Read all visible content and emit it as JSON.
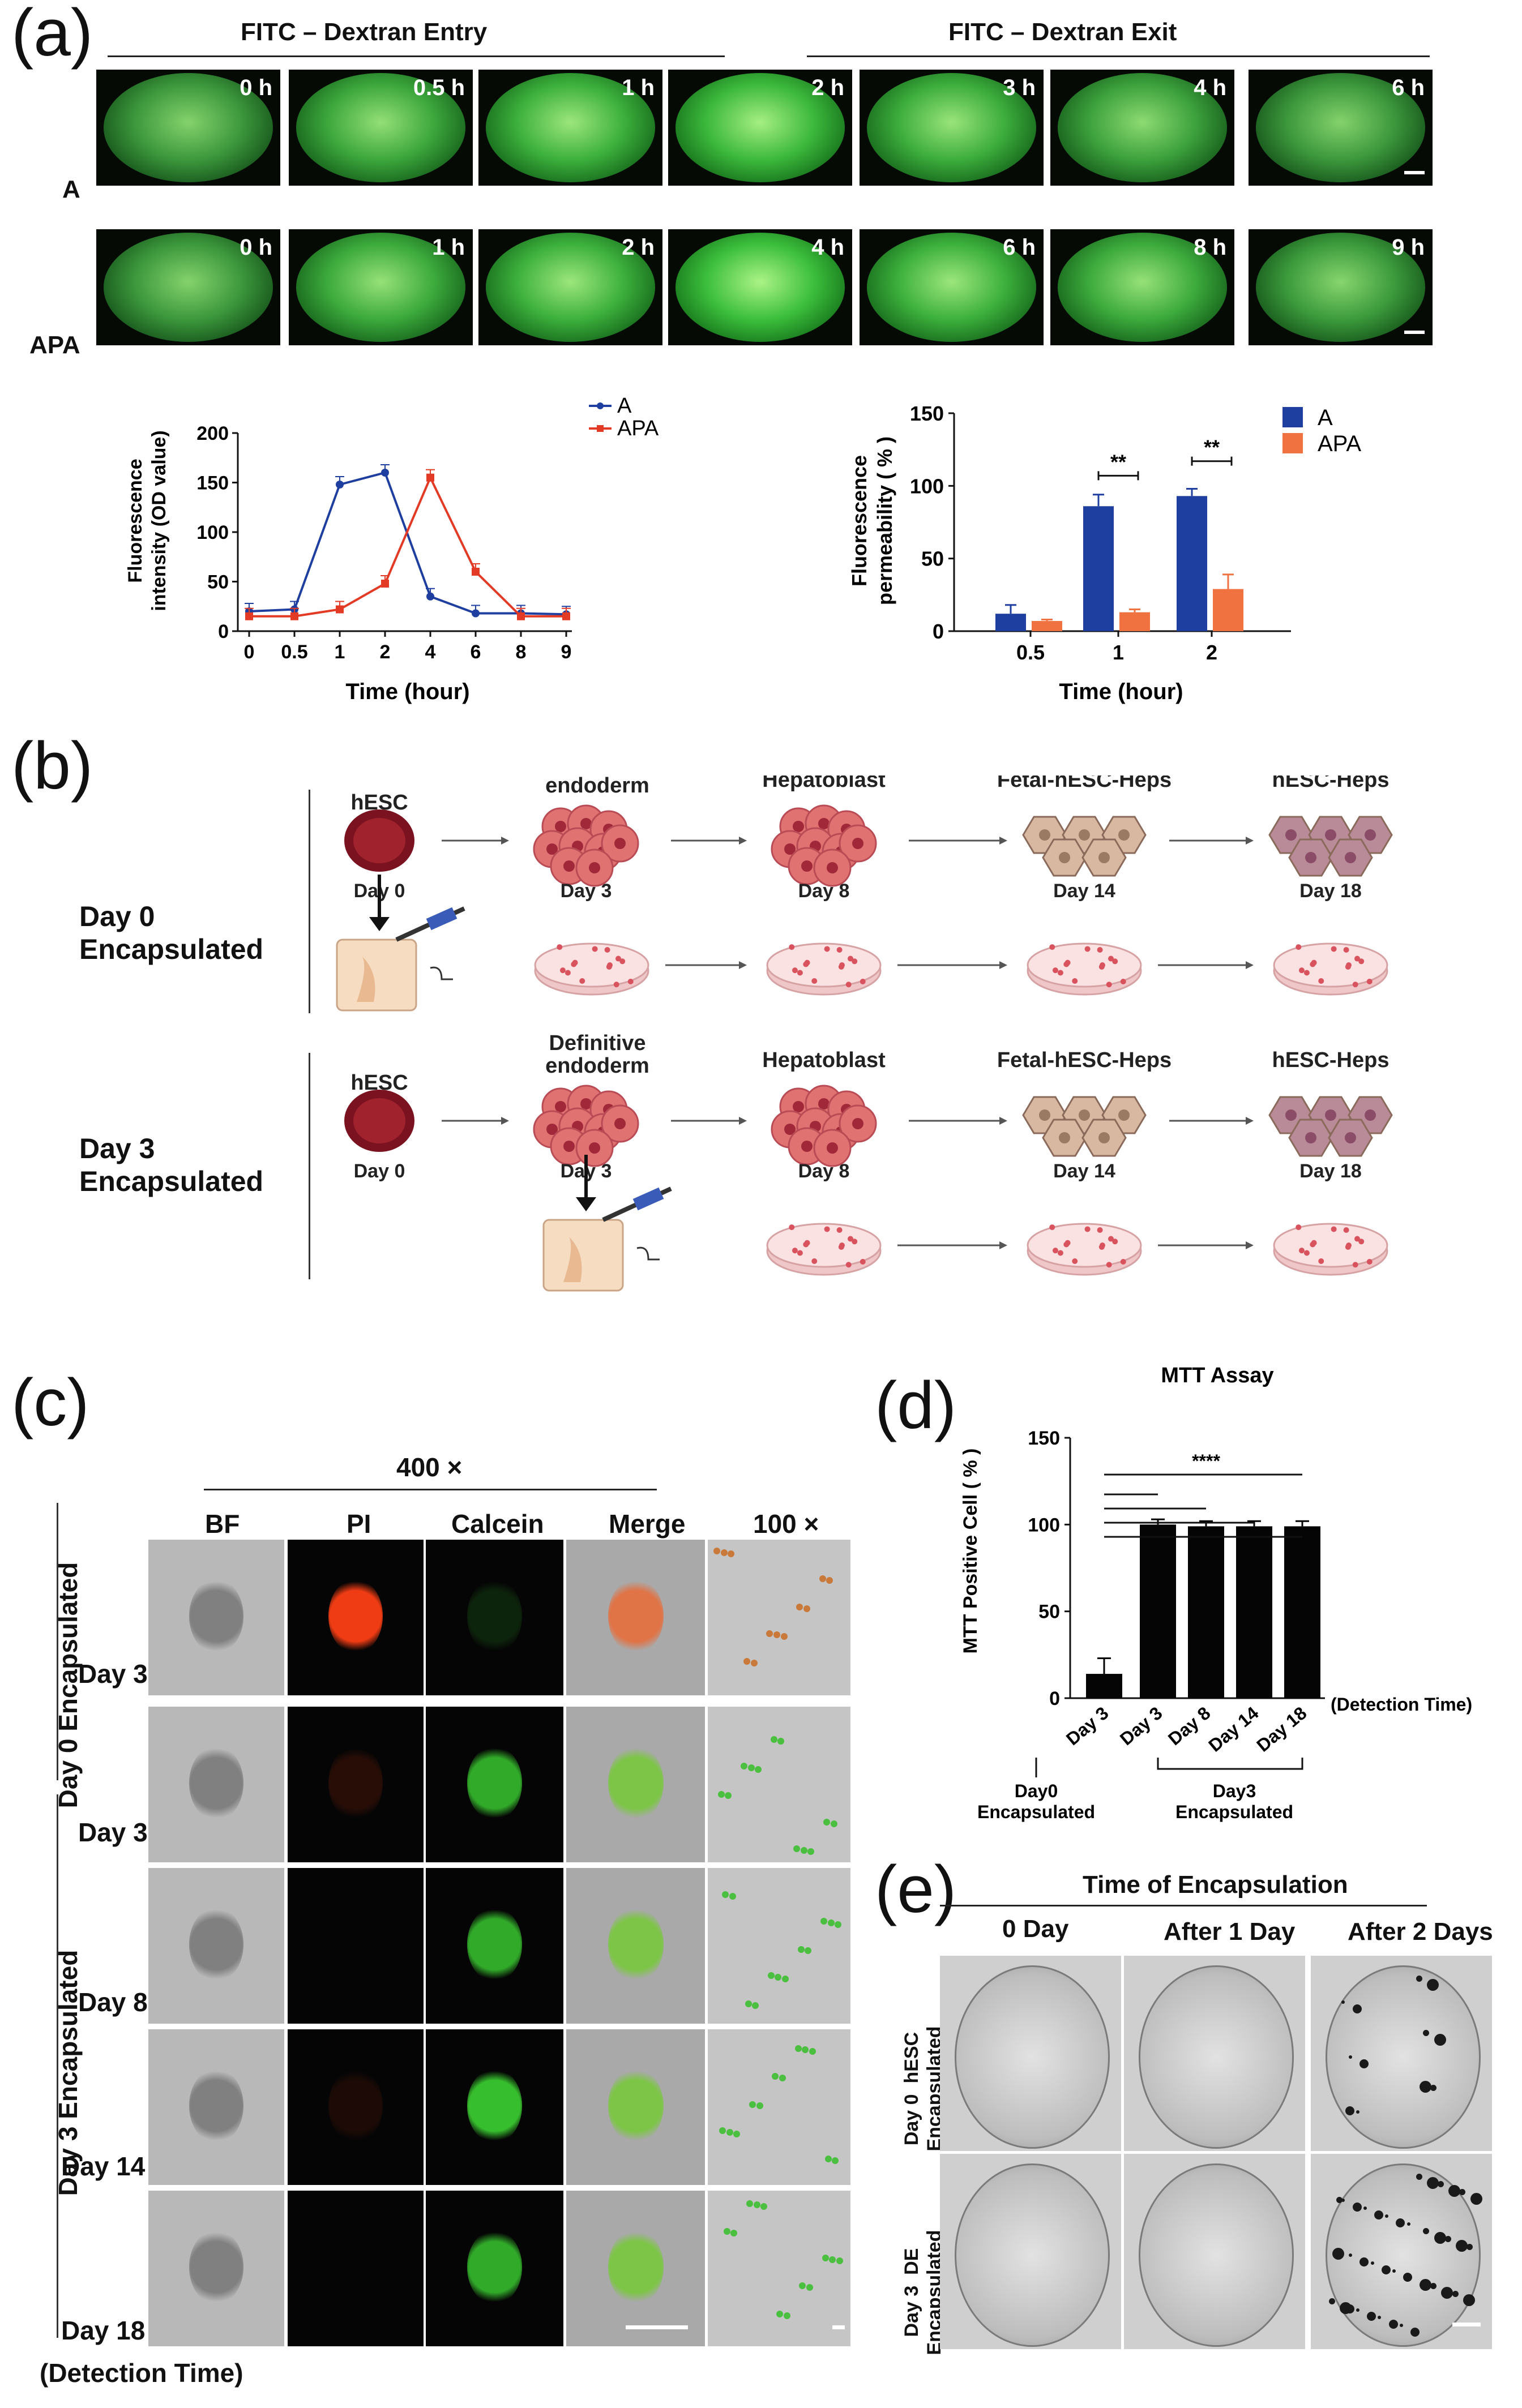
{
  "panel_a": {
    "letter": "(a)",
    "entry_label": "FITC – Dextran Entry",
    "exit_label": "FITC – Dextran Exit",
    "row_A_label": "A",
    "row_APA_label": "APA",
    "row_A_times": [
      "0 h",
      "0.5 h",
      "1 h",
      "2 h",
      "3 h",
      "4 h",
      "6 h"
    ],
    "row_APA_times": [
      "0 h",
      "1 h",
      "2 h",
      "4 h",
      "6 h",
      "8 h",
      "9 h"
    ],
    "colors": {
      "A": "#1f3fa0",
      "APA": "#e23a24",
      "green": "#37b23a"
    }
  },
  "chart_data": [
    {
      "type": "line",
      "title": "",
      "xlabel": "Time (hour)",
      "ylabel": "Fluorescence intensity (OD value)",
      "categories": [
        "0",
        "0.5",
        "1",
        "2",
        "4",
        "6",
        "8",
        "9"
      ],
      "ylim": [
        0,
        200
      ],
      "yticks": [
        "0",
        "50",
        "100",
        "150",
        "200"
      ],
      "series": [
        {
          "name": "A",
          "values": [
            20,
            22,
            148,
            160,
            35,
            18,
            18,
            17
          ]
        },
        {
          "name": "APA",
          "values": [
            15,
            15,
            22,
            48,
            155,
            60,
            15,
            15
          ]
        }
      ],
      "legend": "top-right"
    },
    {
      "type": "bar",
      "title": "",
      "xlabel": "Time (hour)",
      "ylabel": "Fluorescence permeability ( % )",
      "categories": [
        "0.5",
        "1",
        "2"
      ],
      "ylim": [
        0,
        150
      ],
      "yticks": [
        "0",
        "50",
        "100",
        "150"
      ],
      "series": [
        {
          "name": "A",
          "values": [
            12,
            86,
            93
          ]
        },
        {
          "name": "APA",
          "values": [
            7,
            13,
            29
          ]
        }
      ],
      "annotations": [
        "**",
        "**"
      ],
      "legend": "top-right"
    },
    {
      "type": "bar",
      "title": "MTT Assay",
      "xlabel": "(Detection Time)",
      "ylabel": "MTT Positive Cell ( % )",
      "categories": [
        "Day 3",
        "Day 3",
        "Day 8",
        "Day 14",
        "Day 18"
      ],
      "ylim": [
        0,
        150
      ],
      "yticks": [
        "0",
        "50",
        "100",
        "150"
      ],
      "series": [
        {
          "name": "MTT",
          "values": [
            14,
            100,
            99,
            99,
            99
          ]
        }
      ],
      "annotations": [
        "****"
      ],
      "group_labels": [
        "Day0 Encapsulated",
        "Day3 Encapsulated"
      ]
    }
  ],
  "panel_b": {
    "letter": "(b)",
    "row1_label": "Day 0\nEncapsulated",
    "row2_label": "Day 3\nEncapsulated",
    "stages": [
      "hESC",
      "Definitive\nendoderm",
      "Hepatoblast",
      "Fetal-hESC-Heps",
      "hESC-Heps"
    ],
    "days": [
      "Day 0",
      "Day 3",
      "Day 8",
      "Day 14",
      "Day 18"
    ]
  },
  "panel_c": {
    "letter": "(c)",
    "magnification_400": "400 ×",
    "magnification_100": "100 ×",
    "columns": [
      "BF",
      "PI",
      "Calcein",
      "Merge"
    ],
    "rows": [
      "Day 3",
      "Day 3",
      "Day 8",
      "Day 14",
      "Day 18"
    ],
    "group1": "Day 0  Encapsulated",
    "group2": "Day 3  Encapsulated",
    "footer": "(Detection Time)"
  },
  "panel_d": {
    "letter": "(d)"
  },
  "panel_e": {
    "letter": "(e)",
    "title": "Time of Encapsulation",
    "columns": [
      "0 Day",
      "After 1 Day",
      "After 2 Days"
    ],
    "row1_label": "Day 0  hESC\nEncapsulated",
    "row2_label": "Day 3  DE\nEncapsulated"
  }
}
